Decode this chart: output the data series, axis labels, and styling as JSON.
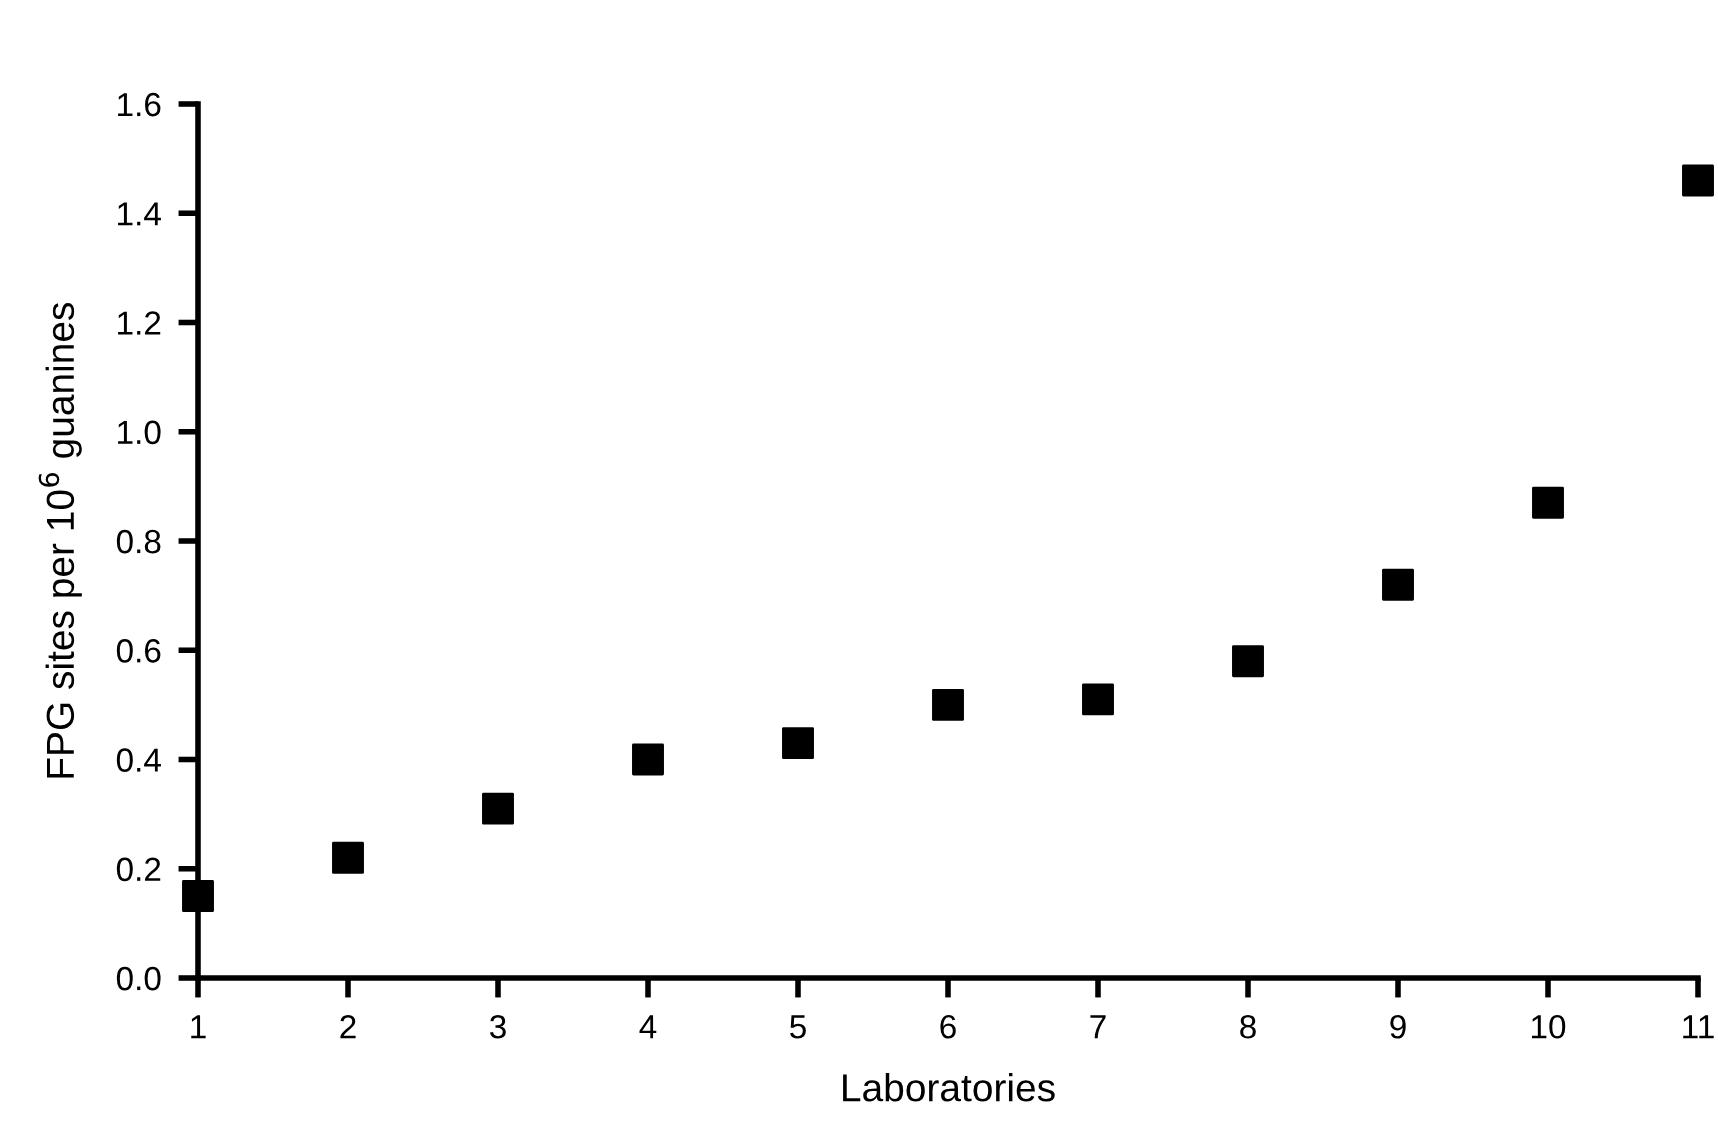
{
  "chart_data": {
    "type": "scatter",
    "xlabel": "Laboratories",
    "ylabel": "FPG sites per 10$^{6}$ guanines",
    "x": [
      1,
      2,
      3,
      4,
      5,
      6,
      7,
      8,
      9,
      10,
      11
    ],
    "series": [
      {
        "color": "#000000",
        "values": [
          0.15,
          0.22,
          0.31,
          0.4,
          0.43,
          0.5,
          0.51,
          0.58,
          0.72,
          0.87,
          1.46
        ]
      }
    ],
    "marker": "square",
    "xlim": [
      1,
      11
    ],
    "xticks": [
      1,
      2,
      3,
      4,
      5,
      6,
      7,
      8,
      9,
      10,
      11
    ],
    "ylim": [
      0,
      1.6
    ],
    "yticks": [
      {
        "value": 0,
        "label": "0.0"
      },
      0.2,
      0.4,
      0.6,
      0.8,
      {
        "value": 1,
        "label": "1.0"
      },
      1.2,
      1.4,
      1.6
    ],
    "grid": false,
    "legend": false
  }
}
